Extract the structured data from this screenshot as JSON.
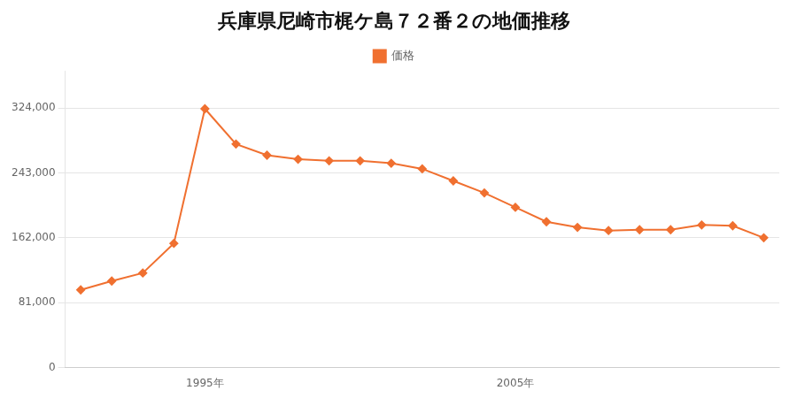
{
  "chart_data": {
    "type": "line",
    "title": "兵庫県尼崎市梶ケ島７２番２の地価推移",
    "x": [
      1991,
      1992,
      1993,
      1994,
      1995,
      1996,
      1997,
      1998,
      1999,
      2000,
      2001,
      2002,
      2003,
      2004,
      2005,
      2006,
      2007,
      2008,
      2009,
      2010,
      2011,
      2012,
      2013
    ],
    "series": [
      {
        "name": "価格",
        "color": "#f07030",
        "marker": "diamond",
        "values": [
          97000,
          108000,
          118000,
          155000,
          323000,
          279000,
          265000,
          260000,
          258000,
          258000,
          255000,
          248000,
          233000,
          218000,
          200000,
          182000,
          175000,
          171000,
          172000,
          172000,
          178000,
          177000,
          162000
        ]
      }
    ],
    "xlim": [
      1990.5,
      2013.5
    ],
    "xticks": [
      {
        "value": 1995,
        "label": "1995年"
      },
      {
        "value": 2005,
        "label": "2005年"
      }
    ],
    "ylim": [
      0,
      370000
    ],
    "yticks": [
      0,
      {
        "value": 81000,
        "label": "81,000"
      },
      {
        "value": 162000,
        "label": "162,000"
      },
      {
        "value": 243000,
        "label": "243,000"
      },
      {
        "value": 324000,
        "label": "324,000"
      }
    ],
    "grid": "y",
    "legend": "top"
  }
}
